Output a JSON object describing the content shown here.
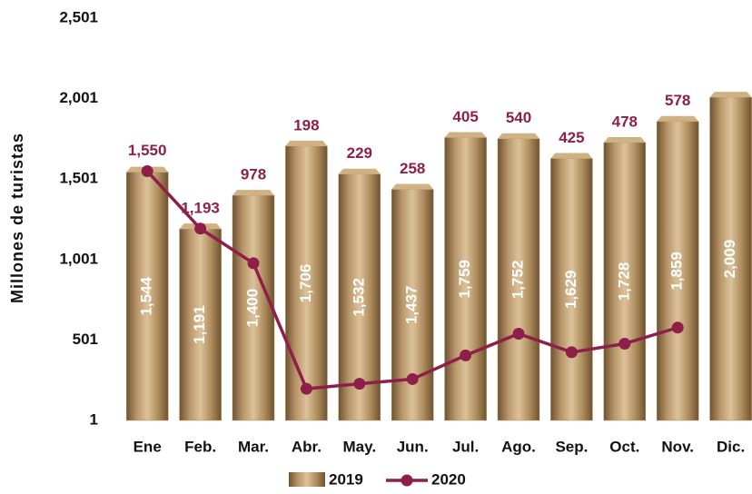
{
  "chart_data": {
    "type": "bar_line",
    "y_axis_label": "Millones de turistas",
    "categories": [
      "Ene",
      "Feb.",
      "Mar.",
      "Abr.",
      "May.",
      "Jun.",
      "Jul.",
      "Ago.",
      "Sep.",
      "Oct.",
      "Nov.",
      "Dic."
    ],
    "series": [
      {
        "name": "2019",
        "type": "bar",
        "color": "#b08f5f",
        "values": [
          1544,
          1191,
          1400,
          1706,
          1532,
          1437,
          1759,
          1752,
          1629,
          1728,
          1859,
          2009
        ],
        "value_labels": [
          "1,544",
          "1,191",
          "1,400",
          "1,706",
          "1,532",
          "1,437",
          "1,759",
          "1,752",
          "1,629",
          "1,728",
          "1,859",
          "2,009"
        ]
      },
      {
        "name": "2020",
        "type": "line",
        "color": "#8e1f48",
        "values": [
          1550,
          1193,
          978,
          198,
          229,
          258,
          405,
          540,
          425,
          478,
          578,
          null
        ],
        "value_labels": [
          "1,550",
          "1,193",
          "978",
          "198",
          "229",
          "258",
          "405",
          "540",
          "425",
          "478",
          "578",
          null
        ]
      }
    ],
    "ylim": [
      1,
      2501
    ],
    "yticks": [
      1,
      501,
      {
        "value": 1001,
        "label": "1,001"
      },
      {
        "value": 1501,
        "label": "1,501"
      },
      {
        "value": 2001,
        "label": "2,001"
      },
      {
        "value": 2501,
        "label": "2,501"
      }
    ],
    "grid": false,
    "legend": "bottom"
  }
}
